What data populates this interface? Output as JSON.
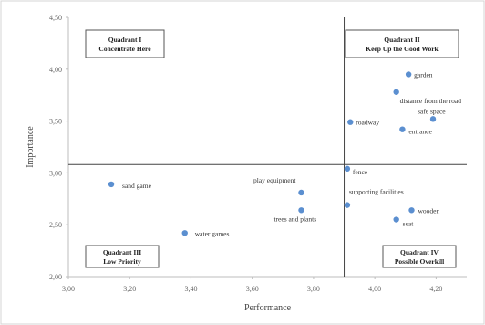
{
  "chart_data": {
    "type": "scatter",
    "xlabel": "Performance",
    "ylabel": "Importance",
    "xlim": [
      3.0,
      4.3
    ],
    "ylim": [
      2.0,
      4.5
    ],
    "x_ticks": [
      "3,00",
      "3,20",
      "3,40",
      "3,60",
      "3,80",
      "4,00",
      "4,20"
    ],
    "y_ticks": [
      "2,00",
      "2,50",
      "3,00",
      "3,50",
      "4,00",
      "4,50"
    ],
    "grid": false,
    "divider_x": 3.9,
    "divider_y": 3.08,
    "marker_color": "#5b8fd0",
    "points": [
      {
        "label": "garden",
        "x": 4.11,
        "y": 3.95
      },
      {
        "label": "distance from the road",
        "x": 4.07,
        "y": 3.78
      },
      {
        "label": "safe space",
        "x": 4.19,
        "y": 3.52
      },
      {
        "label": "roadway",
        "x": 3.92,
        "y": 3.49
      },
      {
        "label": "entrance",
        "x": 4.09,
        "y": 3.42
      },
      {
        "label": "fence",
        "x": 3.91,
        "y": 3.04
      },
      {
        "label": "sand game",
        "x": 3.14,
        "y": 2.89
      },
      {
        "label": "play equipment",
        "x": 3.76,
        "y": 2.81
      },
      {
        "label": "supporting facilities",
        "x": 3.91,
        "y": 2.69
      },
      {
        "label": "trees and plants",
        "x": 3.76,
        "y": 2.64
      },
      {
        "label": "wooden",
        "x": 4.12,
        "y": 2.64
      },
      {
        "label": "seat",
        "x": 4.07,
        "y": 2.55
      },
      {
        "label": "water games",
        "x": 3.38,
        "y": 2.42
      }
    ],
    "quadrants": [
      {
        "title": "Quadrant I",
        "subtitle": "Concentrate Here"
      },
      {
        "title": "Quadrant II",
        "subtitle": "Keep Up the Good Work"
      },
      {
        "title": "Quadrant III",
        "subtitle": "Low Priority"
      },
      {
        "title": "Quadrant IV",
        "subtitle": "Possible Overkill"
      }
    ]
  }
}
